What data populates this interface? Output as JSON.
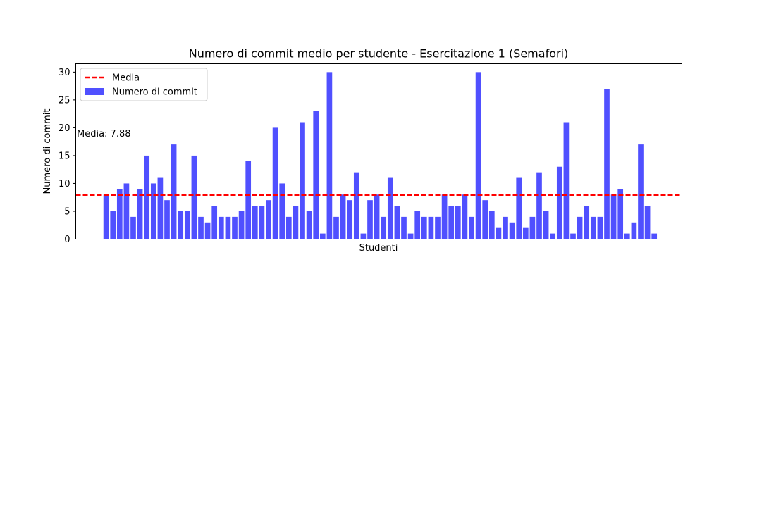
{
  "chart_data": {
    "type": "bar",
    "title": "Numero di commit medio per studente - Esercitazione 1 (Semafori)",
    "xlabel": "Studenti",
    "ylabel": "Numero di commit",
    "ylim": [
      0,
      31.5
    ],
    "yticks": [
      0,
      5,
      10,
      15,
      20,
      25,
      30
    ],
    "grid": false,
    "legend_position": "upper-left",
    "legend": [
      "Media",
      "Numero di commit"
    ],
    "mean": {
      "label": "Media",
      "value": 7.88,
      "annotation": "Media: 7.88",
      "color": "#ff0000"
    },
    "series": [
      {
        "name": "Numero di commit",
        "color": "#5050ff",
        "values": [
          8,
          5,
          9,
          10,
          4,
          9,
          15,
          10,
          11,
          7,
          17,
          5,
          5,
          15,
          4,
          3,
          6,
          4,
          4,
          4,
          5,
          14,
          6,
          6,
          7,
          20,
          10,
          4,
          6,
          21,
          5,
          23,
          1,
          30,
          4,
          8,
          7,
          12,
          1,
          7,
          8,
          4,
          11,
          6,
          4,
          1,
          5,
          4,
          4,
          4,
          8,
          6,
          6,
          8,
          4,
          30,
          7,
          5,
          2,
          4,
          3,
          11,
          2,
          4,
          12,
          5,
          1,
          13,
          21,
          1,
          4,
          6,
          4,
          4,
          27,
          8,
          9,
          1,
          3,
          17,
          6,
          1
        ]
      }
    ]
  }
}
